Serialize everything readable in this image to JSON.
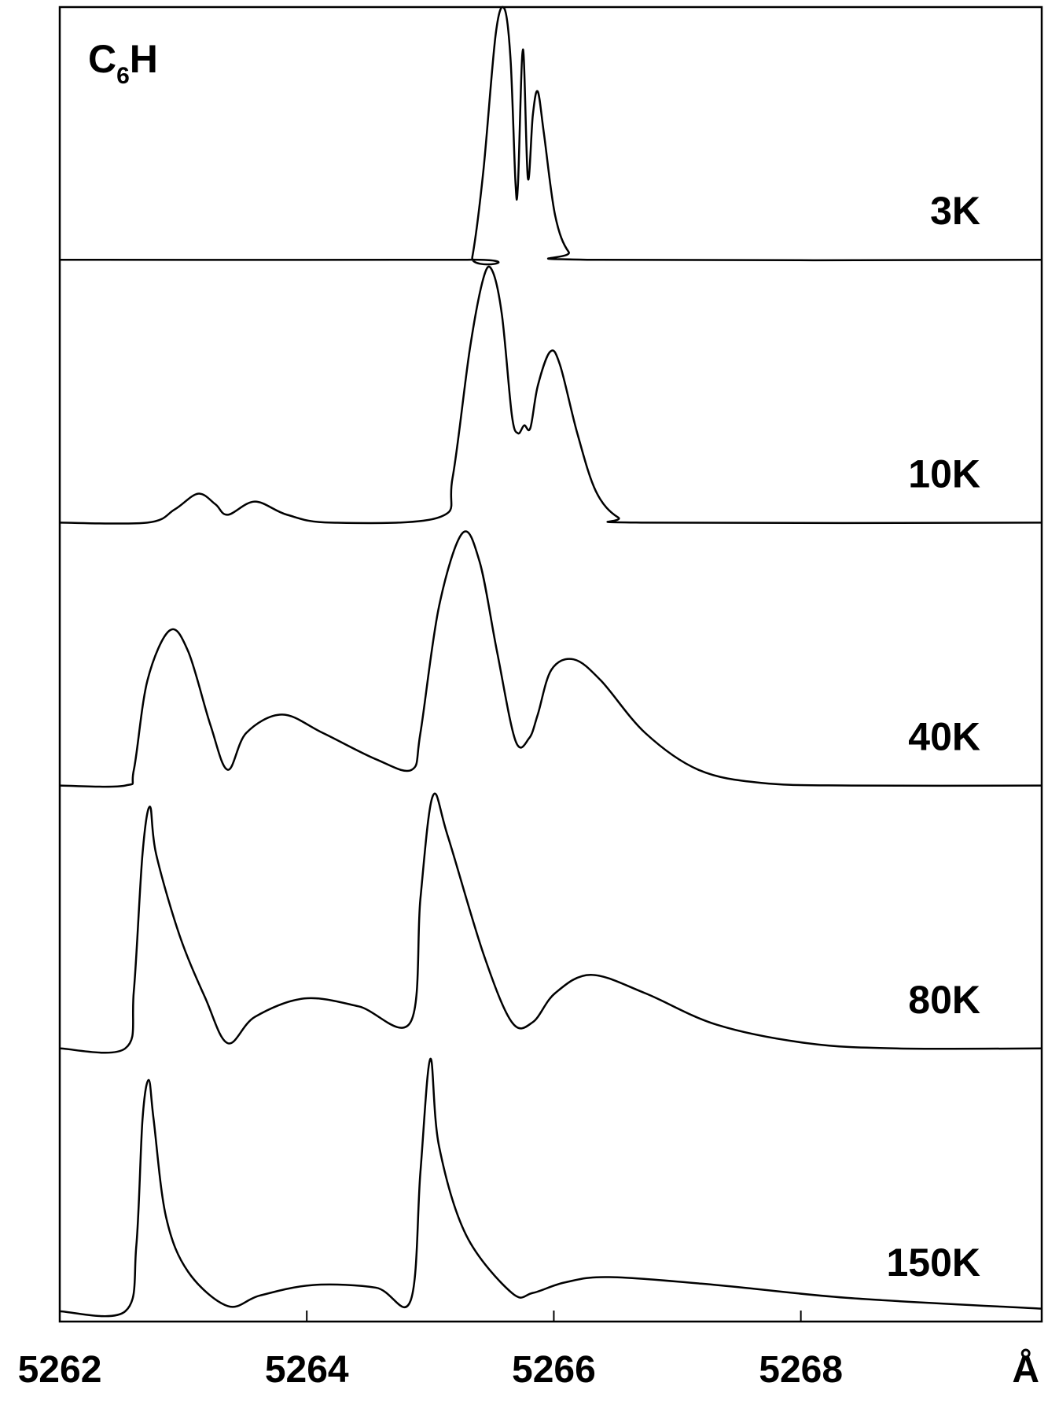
{
  "chart_data": {
    "type": "line",
    "title": [
      "C",
      "6",
      "H"
    ],
    "x_unit": "Å",
    "xlim": [
      5262,
      5269.95
    ],
    "xticks": [
      5262,
      5264,
      5266,
      5268
    ],
    "ylim": [
      0,
      1
    ],
    "series": [
      {
        "name": "3K",
        "color": "#000000",
        "x": [
          5262,
          5265.3,
          5265.34,
          5265.43,
          5265.53,
          5265.6,
          5265.65,
          5265.69,
          5265.71,
          5265.75,
          5265.79,
          5265.83,
          5265.87,
          5265.92,
          5266.01,
          5266.12,
          5266.27,
          5269.95
        ],
        "values": [
          0,
          0,
          0.01,
          0.34,
          0.86,
          0.955,
          0.76,
          0.29,
          0.29,
          0.8,
          0.31,
          0.55,
          0.64,
          0.48,
          0.17,
          0.03,
          0,
          0
        ]
      },
      {
        "name": "10K",
        "color": "#000000",
        "x": [
          5262,
          5262.71,
          5262.93,
          5263.12,
          5263.26,
          5263.36,
          5263.58,
          5263.84,
          5264.2,
          5265.07,
          5265.18,
          5265.32,
          5265.43,
          5265.5,
          5265.58,
          5265.66,
          5265.71,
          5265.76,
          5265.81,
          5265.87,
          5265.97,
          5266.05,
          5266.19,
          5266.34,
          5266.52,
          5266.74,
          5269.95
        ],
        "values": [
          0,
          0,
          0.05,
          0.11,
          0.07,
          0.03,
          0.08,
          0.03,
          0,
          0.02,
          0.17,
          0.66,
          0.93,
          0.96,
          0.79,
          0.41,
          0.34,
          0.37,
          0.36,
          0.52,
          0.65,
          0.6,
          0.34,
          0.12,
          0.02,
          0,
          0
        ]
      },
      {
        "name": "40K",
        "color": "#000000",
        "x": [
          5262,
          5262.53,
          5262.6,
          5262.71,
          5262.89,
          5263.04,
          5263.22,
          5263.36,
          5263.51,
          5263.8,
          5264.13,
          5264.56,
          5264.85,
          5264.92,
          5265.07,
          5265.26,
          5265.4,
          5265.54,
          5265.69,
          5265.8,
          5265.87,
          5265.98,
          5266.16,
          5266.38,
          5266.74,
          5267.17,
          5267.68,
          5268.41,
          5269.95
        ],
        "values": [
          0,
          0,
          0.06,
          0.4,
          0.59,
          0.51,
          0.23,
          0.06,
          0.2,
          0.27,
          0.2,
          0.1,
          0.06,
          0.2,
          0.68,
          0.96,
          0.85,
          0.51,
          0.17,
          0.18,
          0.27,
          0.44,
          0.48,
          0.4,
          0.2,
          0.06,
          0.01,
          0,
          0
        ]
      },
      {
        "name": "80K",
        "color": "#000000",
        "x": [
          5262,
          5262.53,
          5262.6,
          5262.67,
          5262.73,
          5262.78,
          5262.97,
          5263.18,
          5263.36,
          5263.58,
          5263.98,
          5264.42,
          5264.84,
          5264.92,
          5265.02,
          5265.14,
          5265.43,
          5265.66,
          5265.83,
          5266.01,
          5266.3,
          5266.74,
          5267.32,
          5268.05,
          5268.77,
          5269.95
        ],
        "values": [
          0,
          0,
          0.22,
          0.74,
          0.92,
          0.74,
          0.43,
          0.19,
          0.02,
          0.12,
          0.19,
          0.16,
          0.1,
          0.57,
          0.96,
          0.81,
          0.36,
          0.1,
          0.1,
          0.21,
          0.28,
          0.21,
          0.09,
          0.02,
          0,
          0
        ]
      },
      {
        "name": "150K",
        "color": "#000000",
        "x": [
          5262,
          5262.53,
          5262.62,
          5262.67,
          5262.72,
          5262.76,
          5262.86,
          5263.04,
          5263.36,
          5263.62,
          5264.05,
          5264.56,
          5264.84,
          5264.92,
          5265.0,
          5265.07,
          5265.29,
          5265.66,
          5265.83,
          5266.09,
          5266.45,
          5267.32,
          5268.41,
          5269.95
        ],
        "values": [
          0,
          0,
          0.25,
          0.73,
          0.88,
          0.73,
          0.36,
          0.15,
          0.02,
          0.06,
          0.1,
          0.09,
          0.04,
          0.53,
          0.96,
          0.63,
          0.29,
          0.07,
          0.07,
          0.11,
          0.13,
          0.1,
          0.05,
          0.01
        ]
      }
    ]
  }
}
